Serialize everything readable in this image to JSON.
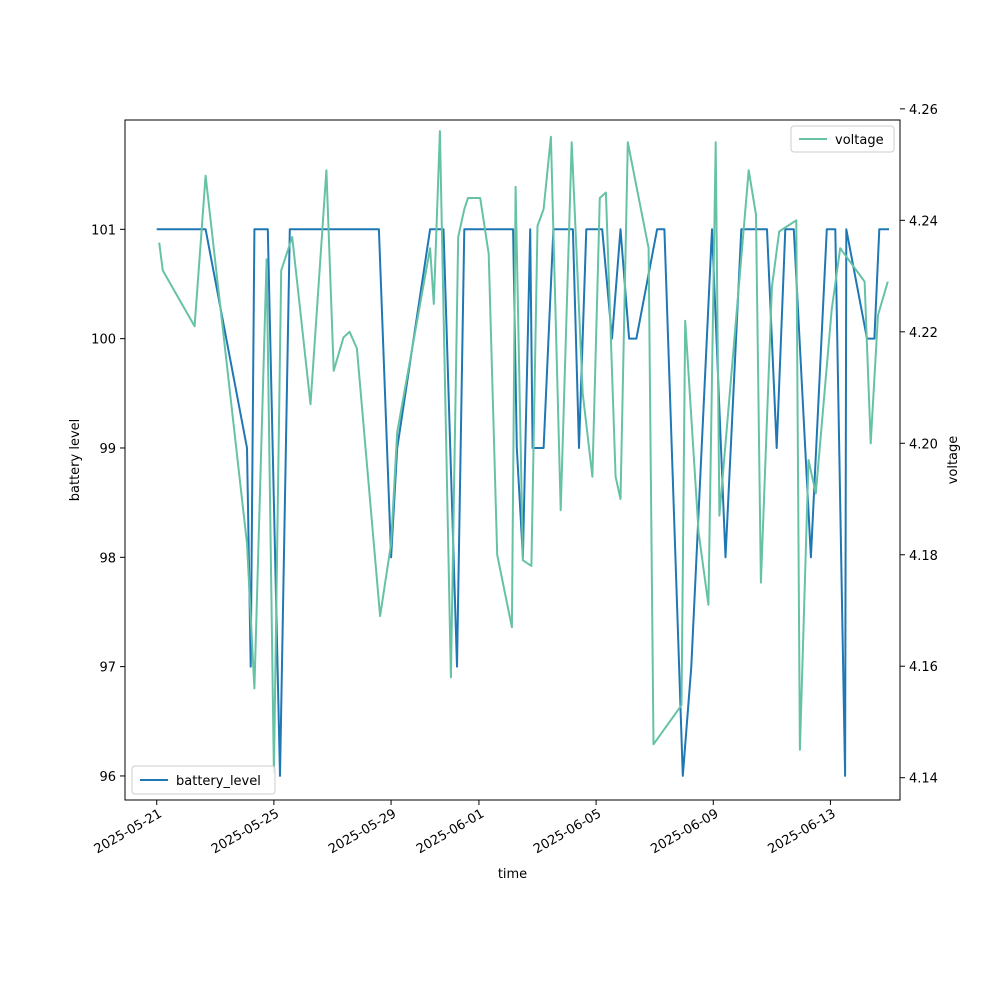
{
  "chart_data": {
    "type": "line",
    "xlabel": "time",
    "ylabel_left": "battery level",
    "ylabel_right": "voltage",
    "x_tick_labels": [
      "2025-05-21",
      "2025-05-25",
      "2025-05-29",
      "2025-06-01",
      "2025-06-05",
      "2025-06-09",
      "2025-06-13"
    ],
    "xlim": [
      "2025-05-19T22:00",
      "2025-06-15T09:00"
    ],
    "ylim_left": [
      95.78,
      102.0
    ],
    "ylim_right": [
      4.136,
      4.258
    ],
    "y_ticks_left": [
      96,
      97,
      98,
      99,
      100,
      101
    ],
    "y_ticks_right": [
      4.14,
      4.16,
      4.18,
      4.2,
      4.22,
      4.24,
      4.26
    ],
    "legend_left": {
      "label": "battery_level",
      "position": "lower-left"
    },
    "legend_right": {
      "label": "voltage",
      "position": "upper-right"
    },
    "colors": {
      "battery_level": "#1f77b4",
      "voltage": "#66c2a5"
    },
    "series": [
      {
        "name": "battery_level",
        "axis": "left",
        "x": [
          "2025-05-21T00:00",
          "2025-05-22T16:00",
          "2025-05-24T02:00",
          "2025-05-24T05:00",
          "2025-05-24T08:00",
          "2025-05-24T19:00",
          "2025-05-25T05:00",
          "2025-05-25T13:00",
          "2025-05-26T06:00",
          "2025-05-28T14:00",
          "2025-05-29T00:00",
          "2025-05-29T05:00",
          "2025-05-30T08:00",
          "2025-05-30T19:00",
          "2025-05-31T06:00",
          "2025-05-31T12:00",
          "2025-05-31T15:00",
          "2025-06-02T04:00",
          "2025-06-02T07:00",
          "2025-06-02T12:00",
          "2025-06-02T18:00",
          "2025-06-02T20:00",
          "2025-06-03T05:00",
          "2025-06-03T13:00",
          "2025-06-04T05:00",
          "2025-06-04T10:00",
          "2025-06-04T16:00",
          "2025-06-05T05:00",
          "2025-06-05T13:00",
          "2025-06-05T20:00",
          "2025-06-06T03:00",
          "2025-06-06T09:00",
          "2025-06-07T02:00",
          "2025-06-07T08:00",
          "2025-06-07T23:00",
          "2025-06-08T06:00",
          "2025-06-08T23:00",
          "2025-06-09T10:00",
          "2025-06-09T23:00",
          "2025-06-10T20:00",
          "2025-06-11T04:00",
          "2025-06-11T11:00",
          "2025-06-11T18:00",
          "2025-06-12T08:00",
          "2025-06-12T21:00",
          "2025-06-13T04:00",
          "2025-06-13T12:00",
          "2025-06-13T13:00",
          "2025-06-14T06:00",
          "2025-06-14T12:00",
          "2025-06-14T16:00",
          "2025-06-15T00:00"
        ],
        "values": [
          101,
          101,
          99,
          97,
          101,
          101,
          96,
          101,
          101,
          101,
          98,
          99,
          101,
          101,
          97,
          101,
          101,
          101,
          99,
          98,
          101,
          99,
          99,
          101,
          101,
          99,
          101,
          101,
          100,
          101,
          100,
          100,
          101,
          101,
          96,
          97,
          101,
          98,
          101,
          101,
          99,
          101,
          101,
          98,
          101,
          101,
          96,
          101,
          100,
          100,
          101,
          101
        ]
      },
      {
        "name": "voltage",
        "axis": "right",
        "x": [
          "2025-05-21T02:00",
          "2025-05-21T05:00",
          "2025-05-22T07:00",
          "2025-05-22T16:00",
          "2025-05-24T02:00",
          "2025-05-24T08:00",
          "2025-05-24T18:00",
          "2025-05-25T00:00",
          "2025-05-25T06:00",
          "2025-05-25T15:00",
          "2025-05-26T06:00",
          "2025-05-26T19:00",
          "2025-05-27T01:00",
          "2025-05-27T09:00",
          "2025-05-27T14:00",
          "2025-05-27T20:00",
          "2025-05-28T15:00",
          "2025-05-29T00:00",
          "2025-05-29T05:00",
          "2025-05-30T08:00",
          "2025-05-30T11:00",
          "2025-05-30T16:00",
          "2025-05-31T01:00",
          "2025-05-31T07:00",
          "2025-05-31T12:00",
          "2025-05-31T15:00",
          "2025-06-01T01:00",
          "2025-06-01T08:00",
          "2025-06-01T15:00",
          "2025-06-02T03:00",
          "2025-06-02T06:00",
          "2025-06-02T12:00",
          "2025-06-02T19:00",
          "2025-06-03T00:00",
          "2025-06-03T05:00",
          "2025-06-03T11:00",
          "2025-06-03T19:00",
          "2025-06-04T04:00",
          "2025-06-04T13:00",
          "2025-06-04T21:00",
          "2025-06-05T03:00",
          "2025-06-05T08:00",
          "2025-06-05T16:00",
          "2025-06-05T20:00",
          "2025-06-06T02:00",
          "2025-06-06T19:00",
          "2025-06-06T23:00",
          "2025-06-07T22:00",
          "2025-06-08T01:00",
          "2025-06-08T12:00",
          "2025-06-08T20:00",
          "2025-06-09T02:00",
          "2025-06-09T05:00",
          "2025-06-10T05:00",
          "2025-06-10T11:00",
          "2025-06-10T15:00",
          "2025-06-11T00:00",
          "2025-06-11T06:00",
          "2025-06-11T20:00",
          "2025-06-11T23:00",
          "2025-06-12T06:00",
          "2025-06-12T12:00",
          "2025-06-13T01:00",
          "2025-06-13T08:00",
          "2025-06-14T04:00",
          "2025-06-14T09:00",
          "2025-06-14T15:00",
          "2025-06-14T23:00"
        ],
        "values": [
          4.236,
          4.231,
          4.221,
          4.248,
          4.182,
          4.156,
          4.233,
          4.141,
          4.231,
          4.237,
          4.207,
          4.249,
          4.213,
          4.219,
          4.22,
          4.217,
          4.169,
          4.182,
          4.202,
          4.235,
          4.225,
          4.256,
          4.158,
          4.237,
          4.242,
          4.244,
          4.244,
          4.234,
          4.18,
          4.167,
          4.246,
          4.179,
          4.178,
          4.239,
          4.242,
          4.255,
          4.188,
          4.254,
          4.209,
          4.194,
          4.244,
          4.245,
          4.194,
          4.19,
          4.254,
          4.235,
          4.146,
          4.153,
          4.222,
          4.184,
          4.171,
          4.254,
          4.187,
          4.249,
          4.241,
          4.175,
          4.228,
          4.238,
          4.24,
          4.145,
          4.197,
          4.191,
          4.224,
          4.235,
          4.229,
          4.2,
          4.223,
          4.229
        ]
      }
    ]
  }
}
